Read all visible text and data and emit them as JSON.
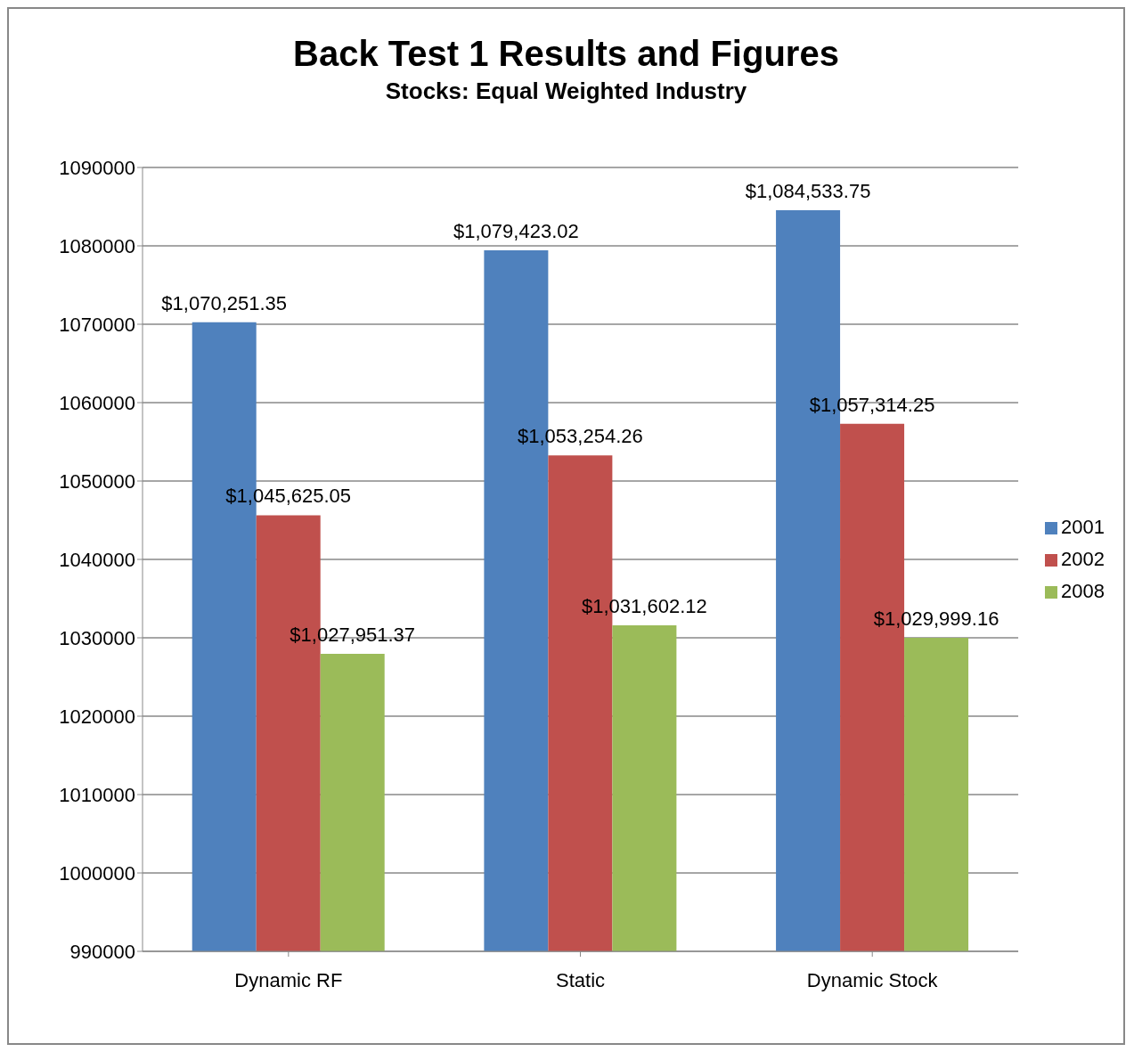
{
  "chart_data": {
    "type": "bar",
    "title": "Back Test 1 Results and Figures",
    "subtitle": "Stocks: Equal Weighted Industry",
    "categories": [
      "Dynamic RF",
      "Static",
      "Dynamic Stock"
    ],
    "series": [
      {
        "name": "2001",
        "color": "#4f81bd",
        "values": [
          1070251.35,
          1079423.02,
          1084533.75
        ],
        "value_labels": [
          "$1,070,251.35",
          "$1,079,423.02",
          "$1,084,533.75"
        ]
      },
      {
        "name": "2002",
        "color": "#c0504d",
        "values": [
          1045625.05,
          1053254.26,
          1057314.25
        ],
        "value_labels": [
          "$1,045,625.05",
          "$1,053,254.26",
          "$1,057,314.25"
        ]
      },
      {
        "name": "2008",
        "color": "#9bbb59",
        "values": [
          1027951.37,
          1031602.12,
          1029999.16
        ],
        "value_labels": [
          "$1,027,951.37",
          "$1,031,602.12",
          "$1,029,999.16"
        ]
      }
    ],
    "ylim": [
      990000,
      1090000
    ],
    "yticks": [
      990000,
      1000000,
      1010000,
      1020000,
      1030000,
      1040000,
      1050000,
      1060000,
      1070000,
      1080000,
      1090000
    ],
    "grid": "y",
    "legend": "right"
  }
}
